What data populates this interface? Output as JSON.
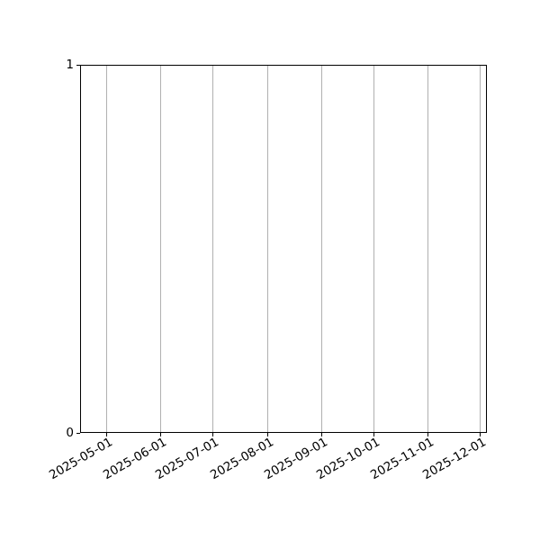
{
  "chart_data": {
    "type": "line",
    "title": "",
    "xlabel": "",
    "ylabel": "",
    "series": [],
    "content": "empty axes with no plotted data",
    "x_axis": {
      "scale": "date",
      "xlim": [
        "2025-04-16",
        "2025-12-05"
      ],
      "ticks": [
        "2025-05-01",
        "2025-06-01",
        "2025-07-01",
        "2025-08-01",
        "2025-09-01",
        "2025-10-01",
        "2025-11-01",
        "2025-12-01"
      ],
      "tick_rotation_deg": 30
    },
    "y_axis": {
      "ylim": [
        0,
        1
      ],
      "ticks": [
        {
          "value": 0,
          "label": "0"
        },
        {
          "value": 1,
          "label": "1"
        }
      ]
    },
    "grid": {
      "vertical": true,
      "horizontal": false
    },
    "legend": null
  },
  "colors": {
    "background": "#ffffff",
    "spine": "#000000",
    "grid": "#b0b0b0",
    "tick": "#000000",
    "tick_label": "#000000"
  }
}
